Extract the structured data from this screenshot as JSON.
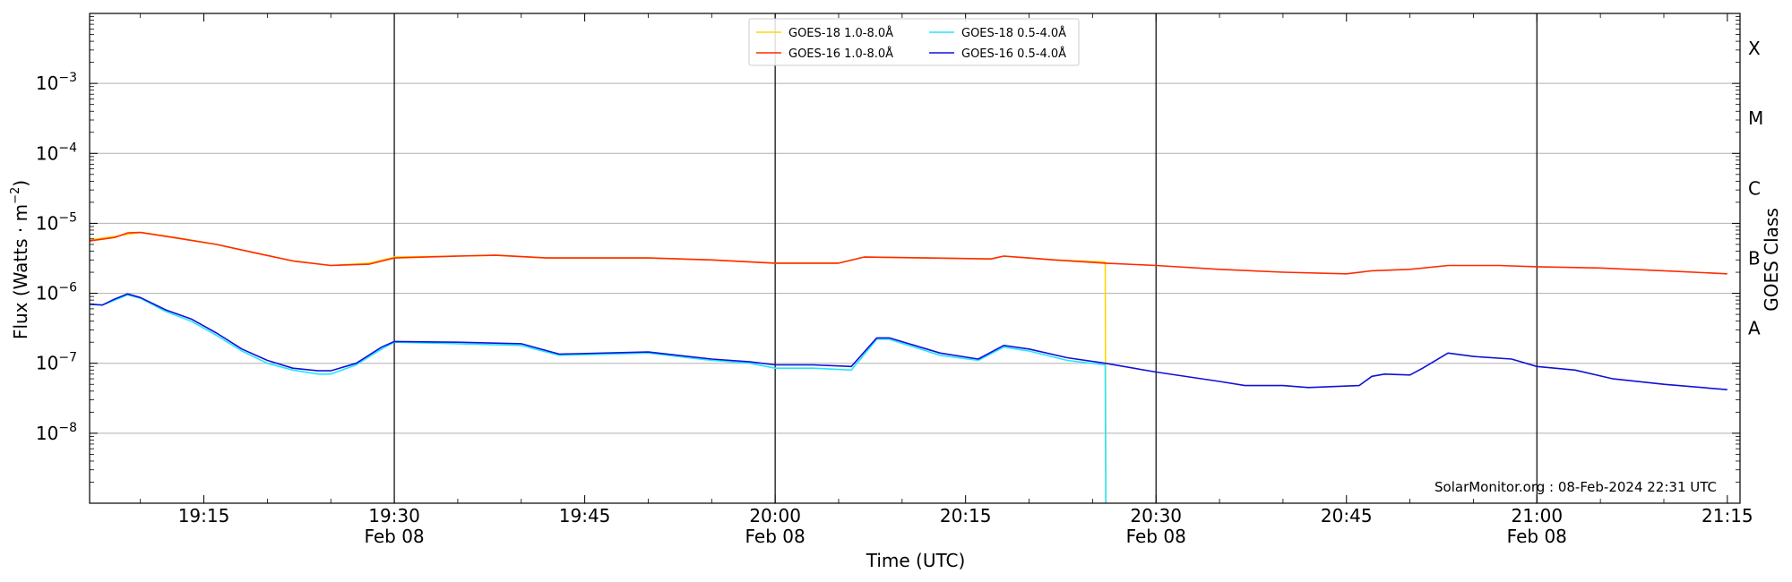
{
  "chart_data": {
    "type": "line",
    "ylabel_main": "Flux (Watts · m",
    "ylabel_sup": "−2",
    "ylabel_tail": ")",
    "xlabel": "Time (UTC)",
    "right_label": "GOES Class",
    "credit": "SolarMonitor.org : 08-Feb-2024 22:31 UTC",
    "y_scale": "log",
    "ylim_exp": [
      -9,
      -2
    ],
    "xlim": [
      "19:06",
      "21:16"
    ],
    "grid": "horizontal at each decade",
    "legend_position": "top-center",
    "y_ticks": [
      {
        "base": "10",
        "exp": "−8",
        "value": 1e-08
      },
      {
        "base": "10",
        "exp": "−7",
        "value": 1e-07
      },
      {
        "base": "10",
        "exp": "−6",
        "value": 1e-06
      },
      {
        "base": "10",
        "exp": "−5",
        "value": 1e-05
      },
      {
        "base": "10",
        "exp": "−4",
        "value": 0.0001
      },
      {
        "base": "10",
        "exp": "−3",
        "value": 0.001
      }
    ],
    "x_ticks": [
      {
        "time": "19:15",
        "label": "19:15",
        "date": ""
      },
      {
        "time": "19:30",
        "label": "19:30",
        "date": "Feb 08"
      },
      {
        "time": "19:45",
        "label": "19:45",
        "date": ""
      },
      {
        "time": "20:00",
        "label": "20:00",
        "date": "Feb 08"
      },
      {
        "time": "20:15",
        "label": "20:15",
        "date": ""
      },
      {
        "time": "20:30",
        "label": "20:30",
        "date": "Feb 08"
      },
      {
        "time": "20:45",
        "label": "20:45",
        "date": ""
      },
      {
        "time": "21:00",
        "label": "21:00",
        "date": "Feb 08"
      },
      {
        "time": "21:15",
        "label": "21:15",
        "date": ""
      }
    ],
    "vertical_lines": [
      "19:30",
      "20:00",
      "20:30",
      "21:00"
    ],
    "goes_classes": [
      {
        "label": "A",
        "value": 1e-07
      },
      {
        "label": "B",
        "value": 1e-06
      },
      {
        "label": "C",
        "value": 1e-05
      },
      {
        "label": "M",
        "value": 0.0001
      },
      {
        "label": "X",
        "value": 0.001
      }
    ],
    "series": [
      {
        "name": "GOES-18 1.0-8.0Å",
        "color": "#ffd700",
        "points": [
          [
            "19:06",
            5.8e-06
          ],
          [
            "19:08",
            6.5e-06
          ],
          [
            "19:10",
            7.4e-06
          ],
          [
            "19:13",
            6.2e-06
          ],
          [
            "19:16",
            5e-06
          ],
          [
            "19:19",
            3.8e-06
          ],
          [
            "19:22",
            2.9e-06
          ],
          [
            "19:25",
            2.5e-06
          ],
          [
            "19:28",
            2.7e-06
          ],
          [
            "19:30",
            3.3e-06
          ],
          [
            "19:35",
            3.4e-06
          ],
          [
            "19:38",
            3.5e-06
          ],
          [
            "19:42",
            3.2e-06
          ],
          [
            "19:50",
            3.2e-06
          ],
          [
            "19:55",
            3e-06
          ],
          [
            "20:00",
            2.7e-06
          ],
          [
            "20:05",
            2.7e-06
          ],
          [
            "20:07",
            3.3e-06
          ],
          [
            "20:12",
            3.2e-06
          ],
          [
            "20:17",
            3.1e-06
          ],
          [
            "20:18",
            3.4e-06
          ],
          [
            "20:22",
            3e-06
          ],
          [
            "20:26",
            2.8e-06
          ],
          [
            "20:26.05",
            1e-09
          ]
        ]
      },
      {
        "name": "GOES-16 1.0-8.0Å",
        "color": "#ff2a00",
        "points": [
          [
            "19:06",
            5.6e-06
          ],
          [
            "19:08",
            6.3e-06
          ],
          [
            "19:09",
            7.3e-06
          ],
          [
            "19:10",
            7.4e-06
          ],
          [
            "19:13",
            6.1e-06
          ],
          [
            "19:16",
            5e-06
          ],
          [
            "19:19",
            3.8e-06
          ],
          [
            "19:22",
            2.9e-06
          ],
          [
            "19:25",
            2.5e-06
          ],
          [
            "19:28",
            2.6e-06
          ],
          [
            "19:30",
            3.2e-06
          ],
          [
            "19:35",
            3.4e-06
          ],
          [
            "19:38",
            3.5e-06
          ],
          [
            "19:42",
            3.2e-06
          ],
          [
            "19:50",
            3.2e-06
          ],
          [
            "19:55",
            3e-06
          ],
          [
            "20:00",
            2.7e-06
          ],
          [
            "20:05",
            2.7e-06
          ],
          [
            "20:07",
            3.3e-06
          ],
          [
            "20:12",
            3.2e-06
          ],
          [
            "20:17",
            3.1e-06
          ],
          [
            "20:18",
            3.4e-06
          ],
          [
            "20:22",
            3e-06
          ],
          [
            "20:26",
            2.7e-06
          ],
          [
            "20:30",
            2.5e-06
          ],
          [
            "20:35",
            2.2e-06
          ],
          [
            "20:40",
            2e-06
          ],
          [
            "20:45",
            1.9e-06
          ],
          [
            "20:47",
            2.1e-06
          ],
          [
            "20:50",
            2.2e-06
          ],
          [
            "20:53",
            2.5e-06
          ],
          [
            "20:57",
            2.5e-06
          ],
          [
            "21:00",
            2.4e-06
          ],
          [
            "21:05",
            2.3e-06
          ],
          [
            "21:10",
            2.1e-06
          ],
          [
            "21:15",
            1.9e-06
          ]
        ]
      },
      {
        "name": "GOES-18 0.5-4.0Å",
        "color": "#22e6ff",
        "points": [
          [
            "19:06",
            7e-07
          ],
          [
            "19:07",
            6.8e-07
          ],
          [
            "19:08",
            8e-07
          ],
          [
            "19:09",
            9.5e-07
          ],
          [
            "19:10",
            8.5e-07
          ],
          [
            "19:12",
            5.5e-07
          ],
          [
            "19:14",
            4e-07
          ],
          [
            "19:16",
            2.5e-07
          ],
          [
            "19:18",
            1.5e-07
          ],
          [
            "19:20",
            1e-07
          ],
          [
            "19:22",
            8e-08
          ],
          [
            "19:24",
            7e-08
          ],
          [
            "19:25",
            7e-08
          ],
          [
            "19:27",
            9.5e-08
          ],
          [
            "19:29",
            1.6e-07
          ],
          [
            "19:30",
            2e-07
          ],
          [
            "19:35",
            1.9e-07
          ],
          [
            "19:40",
            1.8e-07
          ],
          [
            "19:43",
            1.3e-07
          ],
          [
            "19:50",
            1.4e-07
          ],
          [
            "19:55",
            1.1e-07
          ],
          [
            "19:58",
            1e-07
          ],
          [
            "20:00",
            8.5e-08
          ],
          [
            "20:03",
            8.5e-08
          ],
          [
            "20:06",
            8e-08
          ],
          [
            "20:08",
            2.2e-07
          ],
          [
            "20:09",
            2.2e-07
          ],
          [
            "20:13",
            1.3e-07
          ],
          [
            "20:16",
            1.1e-07
          ],
          [
            "20:18",
            1.7e-07
          ],
          [
            "20:20",
            1.5e-07
          ],
          [
            "20:23",
            1.1e-07
          ],
          [
            "20:26",
            9.5e-08
          ],
          [
            "20:26.05",
            1e-09
          ]
        ]
      },
      {
        "name": "GOES-16 0.5-4.0Å",
        "color": "#1010d8",
        "points": [
          [
            "19:06",
            7e-07
          ],
          [
            "19:07",
            6.8e-07
          ],
          [
            "19:08",
            8.3e-07
          ],
          [
            "19:09",
            9.8e-07
          ],
          [
            "19:10",
            8.7e-07
          ],
          [
            "19:12",
            5.8e-07
          ],
          [
            "19:14",
            4.3e-07
          ],
          [
            "19:16",
            2.7e-07
          ],
          [
            "19:18",
            1.6e-07
          ],
          [
            "19:20",
            1.1e-07
          ],
          [
            "19:22",
            8.5e-08
          ],
          [
            "19:24",
            7.8e-08
          ],
          [
            "19:25",
            7.8e-08
          ],
          [
            "19:27",
            1e-07
          ],
          [
            "19:29",
            1.7e-07
          ],
          [
            "19:30",
            2.05e-07
          ],
          [
            "19:35",
            2e-07
          ],
          [
            "19:40",
            1.9e-07
          ],
          [
            "19:43",
            1.35e-07
          ],
          [
            "19:50",
            1.45e-07
          ],
          [
            "19:55",
            1.15e-07
          ],
          [
            "19:58",
            1.05e-07
          ],
          [
            "20:00",
            9.5e-08
          ],
          [
            "20:03",
            9.5e-08
          ],
          [
            "20:06",
            9e-08
          ],
          [
            "20:08",
            2.3e-07
          ],
          [
            "20:09",
            2.3e-07
          ],
          [
            "20:13",
            1.4e-07
          ],
          [
            "20:16",
            1.15e-07
          ],
          [
            "20:18",
            1.8e-07
          ],
          [
            "20:20",
            1.6e-07
          ],
          [
            "20:23",
            1.2e-07
          ],
          [
            "20:26",
            1e-07
          ],
          [
            "20:30",
            7.5e-08
          ],
          [
            "20:35",
            5.5e-08
          ],
          [
            "20:37",
            4.8e-08
          ],
          [
            "20:40",
            4.8e-08
          ],
          [
            "20:42",
            4.5e-08
          ],
          [
            "20:46",
            4.8e-08
          ],
          [
            "20:47",
            6.5e-08
          ],
          [
            "20:48",
            7e-08
          ],
          [
            "20:50",
            6.8e-08
          ],
          [
            "20:51",
            8.5e-08
          ],
          [
            "20:53",
            1.4e-07
          ],
          [
            "20:55",
            1.25e-07
          ],
          [
            "20:58",
            1.15e-07
          ],
          [
            "21:00",
            9e-08
          ],
          [
            "21:03",
            8e-08
          ],
          [
            "21:06",
            6e-08
          ],
          [
            "21:10",
            5e-08
          ],
          [
            "21:15",
            4.2e-08
          ]
        ]
      }
    ]
  }
}
